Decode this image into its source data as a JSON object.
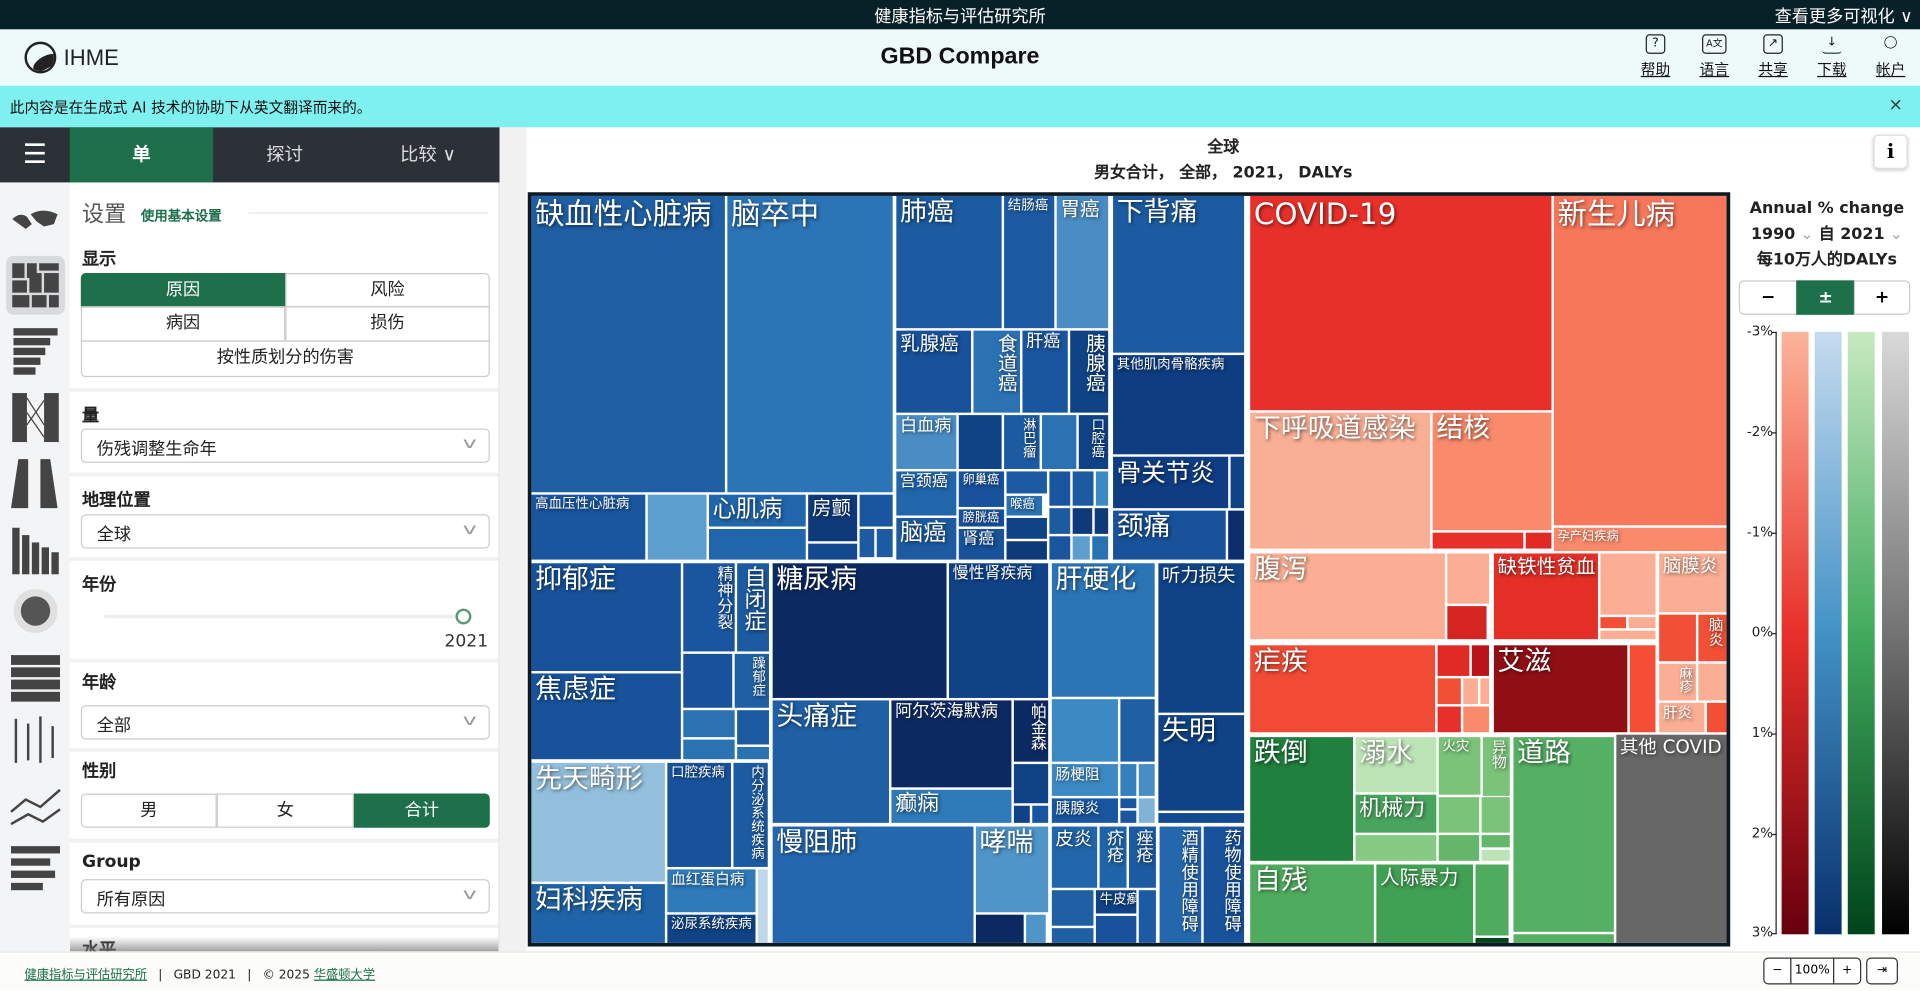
{
  "topbar": {
    "center": "健康指标与评估研究所",
    "right": "查看更多可视化 ∨"
  },
  "header": {
    "logo": "IHME",
    "title": "GBD Compare",
    "buttons": [
      {
        "icon": "?",
        "label": "帮助"
      },
      {
        "icon": "A文",
        "label": "语言"
      },
      {
        "icon": "↗",
        "label": "共享"
      },
      {
        "icon": "↓",
        "label": "下载"
      },
      {
        "icon": "◯",
        "label": "帐户"
      }
    ]
  },
  "banner": {
    "text": "此内容是在生成式 AI 技术的协助下从英文翻译而来的。",
    "close": "×"
  },
  "tabs": {
    "menu": "☰",
    "single": "单",
    "explore": "探讨",
    "compare": "比较 ∨"
  },
  "settings": {
    "title": "设置",
    "basic_link": "使用基本设置",
    "display_label": "显示",
    "display_options": [
      "原因",
      "风险",
      "病因",
      "损伤",
      "按性质划分的伤害"
    ],
    "measure_label": "量",
    "measure_value": "伤残调整生命年",
    "location_label": "地理位置",
    "location_value": "全球",
    "year_label": "年份",
    "year_value": "2021",
    "age_label": "年龄",
    "age_value": "全部",
    "sex_label": "性别",
    "sex_options": [
      "男",
      "女",
      "合计"
    ],
    "group_label": "Group",
    "group_value": "所有原因",
    "level_label": "水平"
  },
  "main": {
    "title": "全球",
    "subtitle": "男女合计， 全部， 2021， DALYs",
    "info": "i"
  },
  "legend": {
    "title": "Annual % change",
    "from_year": "1990",
    "from_word": "自",
    "to_year": "2021",
    "unit": "每10万人的DALYs",
    "buttons": [
      "−",
      "±",
      "+"
    ],
    "ticks": [
      "-3%",
      "-2%",
      "-1%",
      "0%",
      "1%",
      "2%",
      "3%"
    ],
    "scales": {
      "red": [
        "#fcb49a",
        "#e8302a",
        "#67000d"
      ],
      "blue": [
        "#c6dbef",
        "#4292c6",
        "#08306b"
      ],
      "green": [
        "#c7e9c0",
        "#41ab5d",
        "#00441b"
      ],
      "gray": [
        "#d9d9d9",
        "#737373",
        "#000000"
      ]
    }
  },
  "chart_data": {
    "type": "treemap",
    "title": "全球",
    "subtitle": "男女合计， 全部， 2021， DALYs",
    "color_metric": "Annual % change 1990–2021, DALYs per 100,000",
    "cells": [
      "缺血性心脏病",
      "脑卒中",
      "高血压性心脏病",
      "心肌病",
      "房颤",
      "肺癌",
      "结肠癌",
      "胃癌",
      "乳腺癌",
      "食道癌",
      "肝癌",
      "胰腺癌",
      "白血病",
      "淋巴瘤",
      "口腔癌",
      "宫颈癌",
      "卵巢癌",
      "膀胱癌",
      "喉癌",
      "脑癌",
      "肾癌",
      "下背痛",
      "其他肌肉骨骼疾病",
      "骨关节炎",
      "颈痛",
      "抑郁症",
      "焦虑症",
      "精神分裂",
      "自闭症",
      "躁郁症",
      "糖尿病",
      "慢性肾疾病",
      "头痛症",
      "阿尔茨海默病",
      "癫痫",
      "帕金森",
      "肝硬化",
      "听力损失",
      "失明",
      "肠梗阻",
      "胰腺炎",
      "先天畸形",
      "妇科疾病",
      "口腔疾病",
      "内分泌系统疾病",
      "血红蛋白病",
      "泌尿系统疾病",
      "慢阻肺",
      "哮喘",
      "皮炎",
      "疥疮",
      "痤疮",
      "牛皮癣",
      "酒精使用障碍",
      "药物使用障碍",
      "COVID-19",
      "新生儿病",
      "孕产妇疾病",
      "下呼吸道感染",
      "结核",
      "腹泻",
      "缺铁性贫血",
      "脑膜炎",
      "脑炎",
      "疟疾",
      "艾滋",
      "麻疹",
      "肝炎",
      "跌倒",
      "溺水",
      "火灾",
      "异物",
      "机械力",
      "道路",
      "自残",
      "人际暴力",
      "其他 COVID"
    ]
  },
  "footer": {
    "org": "健康指标与评估研究所",
    "sep": "|",
    "gbd": "GBD 2021",
    "copy": "© 2025",
    "univ": "华盛顿大学"
  },
  "zoom": {
    "minus": "−",
    "level": "100%",
    "plus": "+",
    "fit": "⇥"
  }
}
